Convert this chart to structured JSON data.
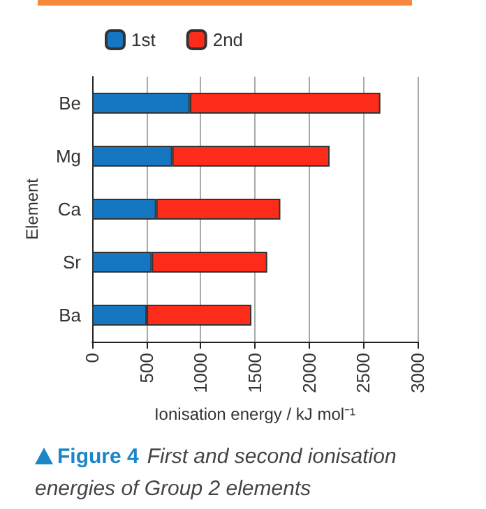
{
  "chart_data": {
    "type": "bar",
    "orientation": "horizontal",
    "stacked": true,
    "title": "Figure 4",
    "subtitle": "First and second ionisation energies of Group 2 elements",
    "xlabel": "Ionisation energy / kJ mol⁻¹",
    "ylabel": "Element",
    "categories": [
      "Be",
      "Mg",
      "Ca",
      "Sr",
      "Ba"
    ],
    "series": [
      {
        "name": "1st",
        "color": "#1577c1",
        "values": [
          900,
          738,
          590,
          550,
          503
        ]
      },
      {
        "name": "2nd",
        "color": "#fc2b1a",
        "values": [
          1757,
          1451,
          1145,
          1064,
          965
        ]
      }
    ],
    "xlim": [
      0,
      3000
    ],
    "xticks": [
      0,
      500,
      1000,
      1500,
      2000,
      2500,
      3000
    ],
    "grid": "x",
    "legend": "top"
  }
}
